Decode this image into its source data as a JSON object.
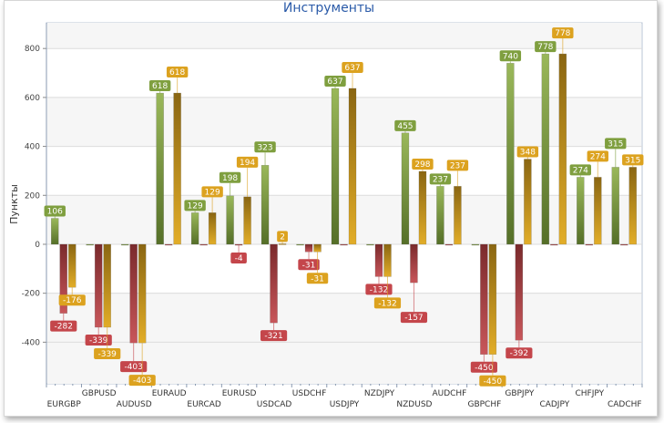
{
  "chart_data": {
    "type": "bar",
    "title": "Инструменты",
    "ylabel": "Пункты",
    "xlabel": "",
    "ylim": [
      -570,
      905
    ],
    "yticks": [
      -400,
      -200,
      0,
      200,
      400,
      600,
      800
    ],
    "grid": true,
    "categories": [
      "EURGBP",
      "GBPUSD",
      "AUDUSD",
      "EURAUD",
      "EURCAD",
      "EURUSD",
      "USDCAD",
      "USDCHF",
      "USDJPY",
      "NZDJPY",
      "NZDUSD",
      "AUDCHF",
      "GBPCHF",
      "GBPJPY",
      "CADJPY",
      "CHFJPY",
      "CADCHF"
    ],
    "series": [
      {
        "color": "#7f9f3f",
        "values": [
          106,
          0,
          0,
          618,
          129,
          198,
          323,
          0,
          637,
          0,
          455,
          237,
          0,
          740,
          778,
          274,
          315
        ]
      },
      {
        "color": "#c4464b",
        "values": [
          -282,
          -339,
          -403,
          0,
          0,
          -4,
          -321,
          -31,
          0,
          -132,
          -157,
          0,
          -450,
          -392,
          0,
          0,
          0
        ]
      },
      {
        "color": "#dca21f",
        "values": [
          -176,
          -339,
          -403,
          618,
          129,
          194,
          2,
          -31,
          637,
          -132,
          298,
          237,
          -450,
          348,
          778,
          274,
          315
        ]
      }
    ]
  }
}
